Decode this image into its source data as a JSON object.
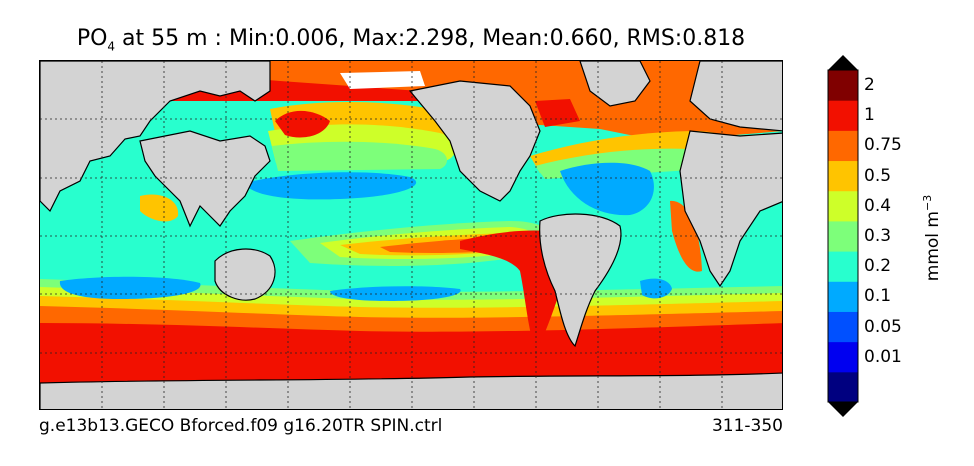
{
  "title": {
    "variable": "PO",
    "subscript": "4",
    "text": " at 55 m : Min:0.006, Max:2.298, Mean:0.660, RMS:0.818"
  },
  "footer": {
    "case_name": "g.e13b13.GECO Bforced.f09 g16.20TR SPIN.ctrl",
    "years": "311-350"
  },
  "colorbar": {
    "units_main": "mmol m",
    "units_exp": "−3",
    "tick_labels": [
      "0.01",
      "0.05",
      "0.1",
      "0.2",
      "0.3",
      "0.4",
      "0.5",
      "0.75",
      "1",
      "2"
    ],
    "bands": [
      {
        "label": "",
        "color": "#000080"
      },
      {
        "label": "0.01",
        "color": "#0000f0"
      },
      {
        "label": "0.05",
        "color": "#0050ff"
      },
      {
        "label": "0.1",
        "color": "#00aaff"
      },
      {
        "label": "0.2",
        "color": "#28ffce"
      },
      {
        "label": "0.3",
        "color": "#7dff7a"
      },
      {
        "label": "0.4",
        "color": "#ceff29"
      },
      {
        "label": "0.5",
        "color": "#ffc400"
      },
      {
        "label": "0.75",
        "color": "#ff6800"
      },
      {
        "label": "1",
        "color": "#f21000"
      },
      {
        "label": "2",
        "color": "#800000"
      }
    ]
  },
  "map": {
    "land_color": "#d3d3d3",
    "coast_color": "#000000",
    "gridlines": "on"
  }
}
